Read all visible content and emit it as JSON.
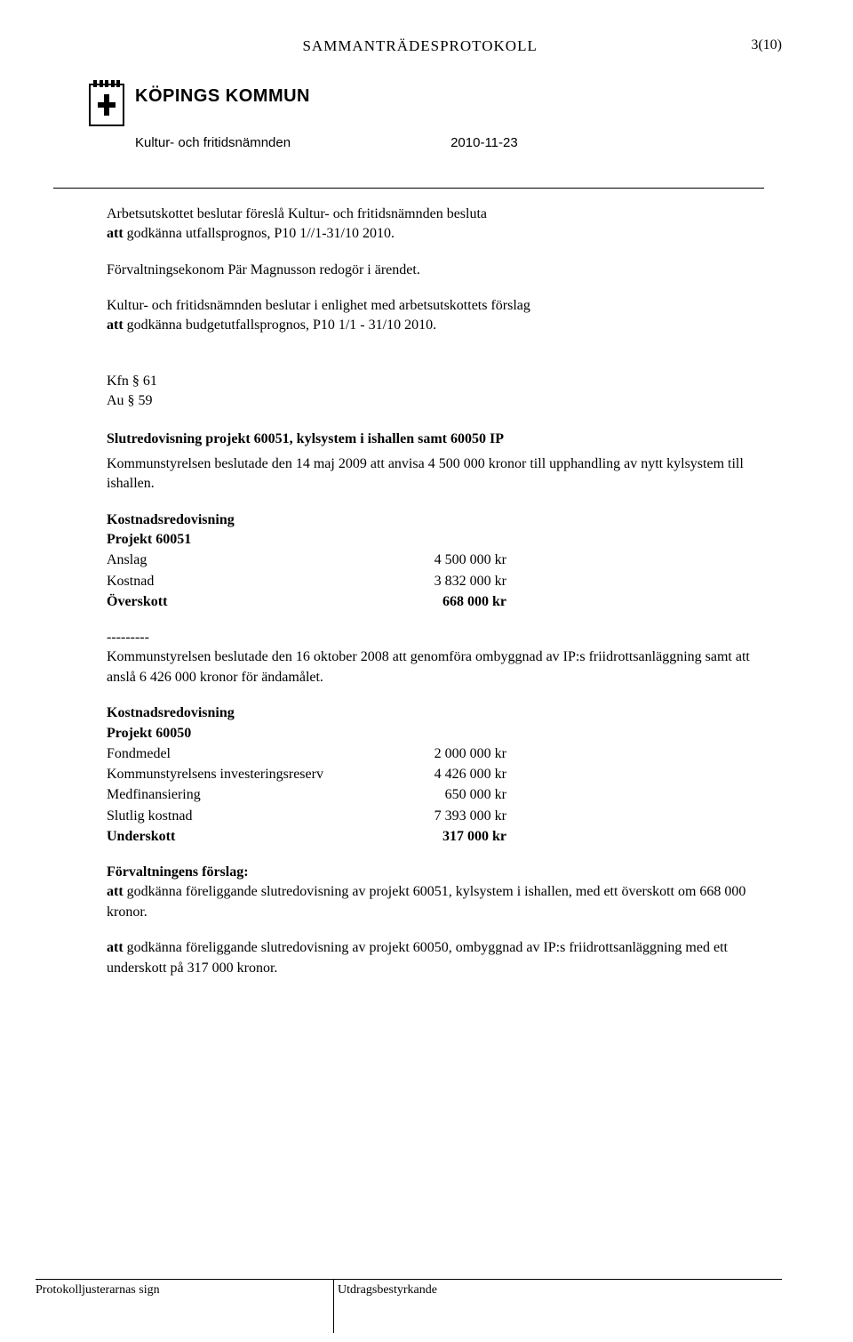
{
  "header": {
    "doc_title": "SAMMANTRÄDESPROTOKOLL",
    "page_num": "3(10)",
    "org_name": "KÖPINGS KOMMUN",
    "committee": "Kultur- och fritidsnämnden",
    "date": "2010-11-23"
  },
  "body": {
    "p1": "Arbetsutskottet beslutar föreslå Kultur- och fritidsnämnden besluta",
    "p1b": " godkänna utfallsprognos, P10 1//1-31/10 2010.",
    "p1b_prefix": "att",
    "p2": "Förvaltningsekonom Pär Magnusson redogör i ärendet.",
    "p3": "Kultur- och fritidsnämnden beslutar i enlighet med arbetsutskottets förslag",
    "p3b_prefix": "att",
    "p3b": " godkänna budgetutfallsprognos, P10 1/1 - 31/10 2010.",
    "ref1": "Kfn § 61",
    "ref2": "Au § 59",
    "title1": "Slutredovisning projekt 60051, kylsystem i ishallen samt 60050 IP",
    "p4": "Kommunstyrelsen beslutade den 14 maj 2009 att anvisa 4 500 000 kronor till upphandling av nytt kylsystem till ishallen.",
    "cost1_heading": "Kostnadsredovisning",
    "cost1_project": "Projekt 60051",
    "cost1": {
      "rows": [
        {
          "label": "Anslag",
          "value": "4 500 000 kr",
          "bold": false
        },
        {
          "label": "Kostnad",
          "value": "3 832 000 kr",
          "bold": false
        },
        {
          "label": "Överskott",
          "value": "668 000 kr",
          "bold": true
        }
      ]
    },
    "divider": "---------",
    "p5": "Kommunstyrelsen beslutade den 16 oktober 2008 att genomföra ombyggnad av IP:s friidrottsanläggning samt att anslå 6 426 000 kronor för ändamålet.",
    "cost2_heading": "Kostnadsredovisning",
    "cost2_project": "Projekt 60050",
    "cost2": {
      "rows": [
        {
          "label": "Fondmedel",
          "value": "2 000 000 kr",
          "bold": false
        },
        {
          "label": "Kommunstyrelsens investeringsreserv",
          "value": "4 426 000 kr",
          "bold": false
        },
        {
          "label": "Medfinansiering",
          "value": "650 000 kr",
          "bold": false
        },
        {
          "label": "Slutlig kostnad",
          "value": "7 393 000 kr",
          "bold": false
        },
        {
          "label": "Underskott",
          "value": "317 000 kr",
          "bold": true
        }
      ]
    },
    "proposal_heading": "Förvaltningens förslag:",
    "p6_prefix": "att",
    "p6": " godkänna föreliggande slutredovisning av projekt 60051, kylsystem i ishallen, med ett överskott om 668 000 kronor.",
    "p7_prefix": "att",
    "p7": " godkänna föreliggande slutredovisning av projekt 60050, ombyggnad av IP:s friidrottsanläggning med ett underskott på 317 000 kronor."
  },
  "footer": {
    "left": "Protokolljusterarnas sign",
    "right": "Utdragsbestyrkande"
  }
}
